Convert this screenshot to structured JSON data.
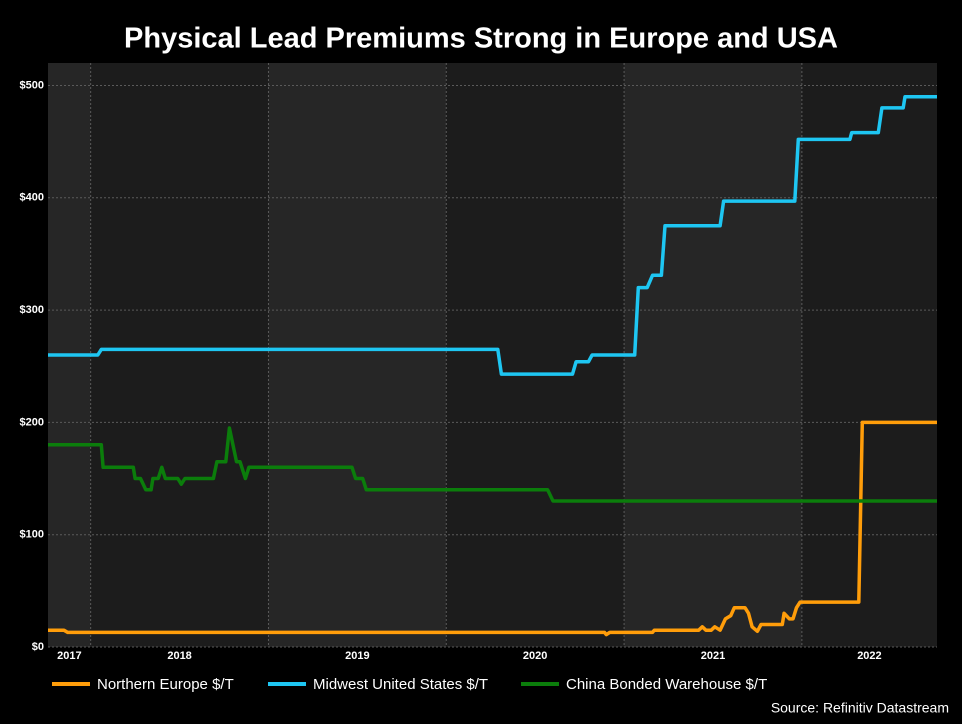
{
  "chart_data": {
    "type": "line",
    "title": "Physical Lead Premiums Strong in Europe and USA",
    "source": "Source: Refinitiv Datastream",
    "xlim": [
      2017.76,
      2022.76
    ],
    "xticks": [
      2017,
      2018,
      2019,
      2020,
      2021,
      2022
    ],
    "ylim": [
      0,
      520
    ],
    "yticks": [
      {
        "value": 0,
        "label": "$0"
      },
      {
        "value": 100,
        "label": "$100"
      },
      {
        "value": 200,
        "label": "$200"
      },
      {
        "value": 300,
        "label": "$300"
      },
      {
        "value": 400,
        "label": "$400"
      },
      {
        "value": 500,
        "label": "$500"
      }
    ],
    "grid": true,
    "legend": "bottom",
    "series": [
      {
        "name": "Northern Europe $/T",
        "color": "#ff9d0a",
        "x": [
          2017.76,
          2017.85,
          2017.87,
          2020.89,
          2020.9,
          2020.92,
          2021.16,
          2021.17,
          2021.42,
          2021.44,
          2021.46,
          2021.49,
          2021.51,
          2021.54,
          2021.57,
          2021.6,
          2021.62,
          2021.68,
          2021.7,
          2021.72,
          2021.75,
          2021.77,
          2021.89,
          2021.9,
          2021.93,
          2021.95,
          2021.97,
          2021.99,
          2022.32,
          2022.34,
          2022.76
        ],
        "values": [
          15,
          15,
          13,
          13,
          11,
          13,
          13,
          15,
          15,
          18,
          15,
          15,
          18,
          15,
          25,
          28,
          35,
          35,
          30,
          18,
          14,
          20,
          20,
          30,
          25,
          25,
          35,
          40,
          40,
          200,
          200
        ]
      },
      {
        "name": "Midwest United States $/T",
        "color": "#1ec6f2",
        "x": [
          2017.76,
          2018.04,
          2018.06,
          2020.29,
          2020.31,
          2020.71,
          2020.73,
          2020.8,
          2020.82,
          2021.06,
          2021.08,
          2021.13,
          2021.16,
          2021.21,
          2021.23,
          2021.54,
          2021.56,
          2021.96,
          2021.98,
          2022.27,
          2022.28,
          2022.43,
          2022.45,
          2022.57,
          2022.58,
          2022.76
        ],
        "values": [
          260,
          260,
          265,
          265,
          243,
          243,
          254,
          254,
          260,
          260,
          320,
          320,
          331,
          331,
          375,
          375,
          397,
          397,
          452,
          452,
          458,
          458,
          480,
          480,
          490,
          490
        ]
      },
      {
        "name": "China Bonded Warehouse $/T",
        "color": "#0b7d0b",
        "x": [
          2017.76,
          2018.06,
          2018.07,
          2018.24,
          2018.25,
          2018.28,
          2018.31,
          2018.34,
          2018.35,
          2018.38,
          2018.4,
          2018.42,
          2018.49,
          2018.51,
          2018.53,
          2018.69,
          2018.71,
          2018.76,
          2018.78,
          2018.82,
          2018.84,
          2018.87,
          2018.89,
          2019.47,
          2019.49,
          2019.53,
          2019.55,
          2020.57,
          2020.6,
          2022.76
        ],
        "values": [
          180,
          180,
          160,
          160,
          150,
          150,
          140,
          140,
          150,
          150,
          160,
          150,
          150,
          145,
          150,
          150,
          165,
          165,
          195,
          165,
          165,
          150,
          160,
          160,
          150,
          150,
          140,
          140,
          130,
          130
        ]
      }
    ]
  }
}
